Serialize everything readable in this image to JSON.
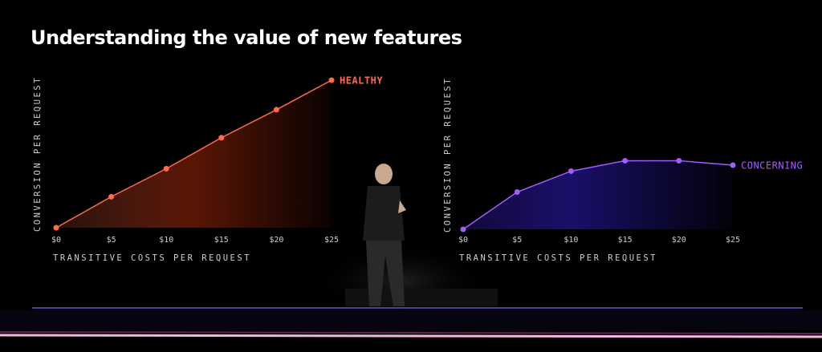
{
  "title": "Understanding the value of new features",
  "chart_data": [
    {
      "type": "line",
      "x": [
        0,
        5,
        10,
        15,
        20,
        25
      ],
      "series": [
        {
          "name": "HEALTHY",
          "color": "#ff6b4a",
          "values": [
            0,
            21,
            40,
            61,
            80,
            100
          ]
        }
      ],
      "xlim": [
        0,
        25
      ],
      "ylim": [
        0,
        100
      ],
      "xticks": [
        {
          "value": 0,
          "label": "$0"
        },
        {
          "value": 5,
          "label": "$5"
        },
        {
          "value": 10,
          "label": "$10"
        },
        {
          "value": 15,
          "label": "$15"
        },
        {
          "value": 20,
          "label": "$20"
        },
        {
          "value": 25,
          "label": "$25"
        }
      ],
      "xlabel": "TRANSITIVE COSTS PER REQUEST",
      "ylabel": "CONVERSION PER REQUEST"
    },
    {
      "type": "line",
      "x": [
        0,
        5,
        10,
        15,
        20,
        25
      ],
      "series": [
        {
          "name": "CONCERNING",
          "color": "#a35cff",
          "values": [
            0,
            25,
            39,
            46,
            46,
            43
          ]
        }
      ],
      "xlim": [
        0,
        25
      ],
      "ylim": [
        0,
        100
      ],
      "xticks": [
        {
          "value": 0,
          "label": "$0"
        },
        {
          "value": 5,
          "label": "$5"
        },
        {
          "value": 10,
          "label": "$10"
        },
        {
          "value": 15,
          "label": "$15"
        },
        {
          "value": 20,
          "label": "$20"
        },
        {
          "value": 25,
          "label": "$25"
        }
      ],
      "xlabel": "TRANSITIVE COSTS PER REQUEST",
      "ylabel": "CONVERSION PER REQUEST"
    }
  ]
}
